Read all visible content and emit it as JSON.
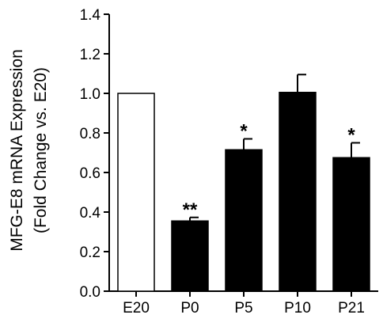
{
  "chart_data": {
    "type": "bar",
    "ylabel_line1": "MFG-E8 mRNA Expression",
    "ylabel_line2": "(Fold Change vs. E20)",
    "ylim": [
      0.0,
      1.4
    ],
    "yticks": [
      0.0,
      0.2,
      0.4,
      0.6,
      0.8,
      1.0,
      1.2,
      1.4
    ],
    "ytick_labels": [
      "0.0",
      "0.2",
      "0.4",
      "0.6",
      "0.8",
      "1.0",
      "1.2",
      "1.4"
    ],
    "categories": [
      "E20",
      "P0",
      "P5",
      "P10",
      "P21"
    ],
    "values": [
      1.0,
      0.355,
      0.715,
      1.005,
      0.675
    ],
    "errors": [
      0.0,
      0.018,
      0.055,
      0.09,
      0.075
    ],
    "significance": [
      "",
      "**",
      "*",
      "",
      "*"
    ],
    "bar_fills": [
      "#ffffff",
      "#000000",
      "#000000",
      "#000000",
      "#000000"
    ],
    "grid": false
  }
}
